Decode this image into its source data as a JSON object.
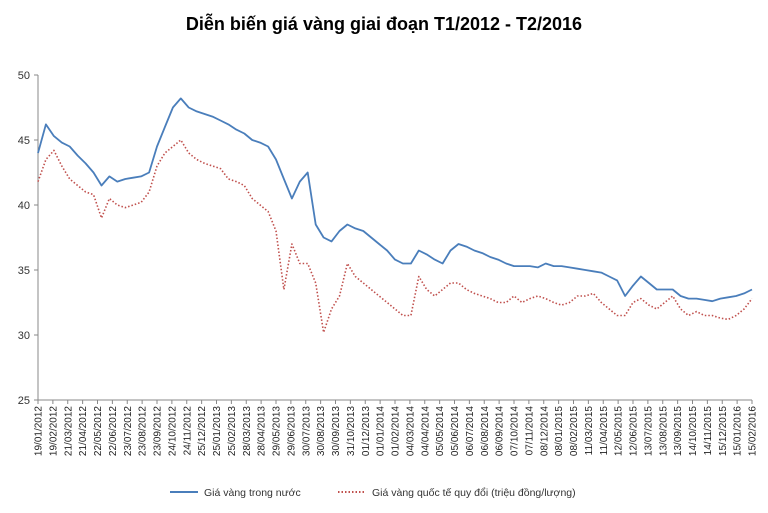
{
  "chart_data": {
    "type": "line",
    "title": "Diễn biến giá vàng giai đoạn T1/2012 - T2/2016",
    "xlabel": "",
    "ylabel": "",
    "ylim": [
      25,
      50
    ],
    "yticks": [
      "25",
      "30",
      "35",
      "40",
      "45",
      "50"
    ],
    "grid": false,
    "legend": "bottom",
    "x_tick_labels": [
      "19/01/2012",
      "19/02/2012",
      "21/03/2012",
      "21/04/2012",
      "22/05/2012",
      "22/06/2012",
      "23/07/2012",
      "23/08/2012",
      "23/09/2012",
      "24/10/2012",
      "24/11/2012",
      "25/12/2012",
      "25/01/2013",
      "25/02/2013",
      "28/03/2013",
      "28/04/2013",
      "29/05/2013",
      "29/06/2013",
      "30/07/2013",
      "30/08/2013",
      "30/09/2013",
      "31/10/2013",
      "01/12/2013",
      "01/01/2014",
      "01/02/2014",
      "04/03/2014",
      "04/04/2014",
      "05/05/2014",
      "05/06/2014",
      "06/07/2014",
      "06/08/2014",
      "06/09/2014",
      "07/10/2014",
      "07/11/2014",
      "08/12/2014",
      "08/01/2015",
      "08/02/2015",
      "11/03/2015",
      "11/04/2015",
      "12/05/2015",
      "12/06/2015",
      "13/07/2015",
      "13/08/2015",
      "13/09/2015",
      "14/10/2015",
      "14/11/2015",
      "15/12/2015",
      "15/01/2016",
      "15/02/2016"
    ],
    "series": [
      {
        "name": "Giá vàng trong nước",
        "color": "#4a7ebb",
        "style": "solid",
        "values": [
          44.0,
          46.2,
          45.3,
          44.8,
          44.5,
          43.8,
          43.2,
          42.5,
          41.5,
          42.2,
          41.8,
          42.0,
          42.1,
          42.2,
          42.5,
          44.5,
          46.0,
          47.5,
          48.2,
          47.5,
          47.2,
          47.0,
          46.8,
          46.5,
          46.2,
          45.8,
          45.5,
          45.0,
          44.8,
          44.5,
          43.5,
          42.0,
          40.5,
          41.8,
          42.5,
          38.5,
          37.5,
          37.2,
          38.0,
          38.5,
          38.2,
          38.0,
          37.5,
          37.0,
          36.5,
          35.8,
          35.5,
          35.5,
          36.5,
          36.2,
          35.8,
          35.5,
          36.5,
          37.0,
          36.8,
          36.5,
          36.3,
          36.0,
          35.8,
          35.5,
          35.3,
          35.3,
          35.3,
          35.2,
          35.5,
          35.3,
          35.3,
          35.2,
          35.1,
          35.0,
          34.9,
          34.8,
          34.5,
          34.2,
          33.0,
          33.8,
          34.5,
          34.0,
          33.5,
          33.5,
          33.5,
          33.0,
          32.8,
          32.8,
          32.7,
          32.6,
          32.8,
          32.9,
          33.0,
          33.2,
          33.5
        ]
      },
      {
        "name": "Giá vàng quốc tế quy đổi (triệu đồng/lượng)",
        "color": "#c0504d",
        "style": "dotted",
        "values": [
          41.8,
          43.5,
          44.2,
          43.0,
          42.0,
          41.5,
          41.0,
          40.8,
          39.0,
          40.5,
          40.0,
          39.8,
          40.0,
          40.2,
          41.0,
          43.0,
          44.0,
          44.5,
          45.0,
          44.0,
          43.5,
          43.2,
          43.0,
          42.8,
          42.0,
          41.8,
          41.5,
          40.5,
          40.0,
          39.5,
          38.0,
          33.5,
          37.0,
          35.5,
          35.5,
          34.0,
          30.2,
          32.0,
          33.0,
          35.5,
          34.5,
          34.0,
          33.5,
          33.0,
          32.5,
          32.0,
          31.5,
          31.5,
          34.5,
          33.5,
          33.0,
          33.5,
          34.0,
          34.0,
          33.5,
          33.2,
          33.0,
          32.8,
          32.5,
          32.5,
          33.0,
          32.5,
          32.8,
          33.0,
          32.8,
          32.5,
          32.3,
          32.5,
          33.0,
          33.0,
          33.2,
          32.5,
          32.0,
          31.5,
          31.5,
          32.5,
          32.8,
          32.3,
          32.0,
          32.5,
          33.0,
          32.0,
          31.5,
          31.8,
          31.5,
          31.5,
          31.3,
          31.2,
          31.5,
          32.0,
          32.8
        ]
      }
    ]
  }
}
